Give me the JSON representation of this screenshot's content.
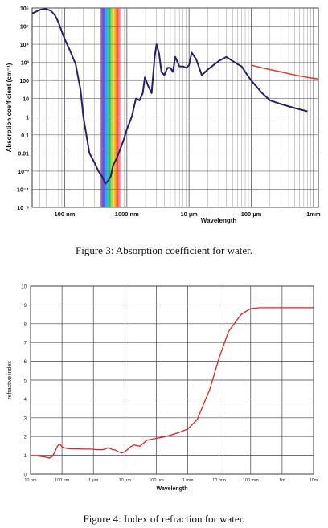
{
  "chart_data": [
    {
      "type": "line",
      "xscale": "log",
      "yscale": "log",
      "xlim_m": [
        3e-08,
        0.0012
      ],
      "ylim": [
        1e-05,
        1000000.0
      ],
      "ylabel": "Absorption coefficient (cm⁻¹)",
      "xlabel": "Wavelength",
      "grid": true,
      "x_ticks": [
        {
          "value": 1e-07,
          "label": "100 nm"
        },
        {
          "value": 1e-06,
          "label": "1000 nm"
        },
        {
          "value": 1e-05,
          "label": "10 µm"
        },
        {
          "value": 0.0001,
          "label": "100 µm"
        },
        {
          "value": 0.001,
          "label": "1mm"
        }
      ],
      "y_ticks": [
        {
          "value": 1000000.0,
          "label": "10⁶"
        },
        {
          "value": 100000.0,
          "label": "10⁵"
        },
        {
          "value": 10000.0,
          "label": "10⁴"
        },
        {
          "value": 1000.0,
          "label": "10³"
        },
        {
          "value": 100,
          "label": "100"
        },
        {
          "value": 10,
          "label": "10"
        },
        {
          "value": 1,
          "label": "1"
        },
        {
          "value": 0.1,
          "label": "0.1"
        },
        {
          "value": 0.01,
          "label": "0.01"
        },
        {
          "value": 0.001,
          "label": "10⁻³"
        },
        {
          "value": 0.0001,
          "label": "10⁻⁴"
        },
        {
          "value": 1e-05,
          "label": "10⁻⁵"
        }
      ],
      "visible_band_m": [
        3.8e-07,
        7.8e-07
      ],
      "series": [
        {
          "color": "#2a1f66",
          "x": [
            3e-08,
            4e-08,
            5e-08,
            6e-08,
            7e-08,
            8e-08,
            9e-08,
            1e-07,
            1.2e-07,
            1.5e-07,
            1.8e-07,
            2e-07,
            2.5e-07,
            3e-07,
            3.5e-07,
            4e-07,
            4.5e-07,
            5e-07,
            5.5e-07,
            6e-07,
            7e-07,
            8e-07,
            9e-07,
            1e-06,
            1.2e-06,
            1.4e-06,
            1.6e-06,
            1.8e-06,
            1.95e-06,
            2.2e-06,
            2.5e-06,
            2.8e-06,
            3e-06,
            3.3e-06,
            3.6e-06,
            4e-06,
            4.5e-06,
            5e-06,
            5.5e-06,
            6e-06,
            7e-06,
            8e-06,
            9e-06,
            1e-05,
            1.1e-05,
            1.3e-05,
            1.6e-05,
            2e-05,
            3e-05,
            4e-05,
            5e-05,
            6e-05,
            7e-05,
            8e-05,
            0.0001,
            0.00015,
            0.0002,
            0.0003,
            0.0005,
            0.0008
          ],
          "y": [
            500000,
            800000,
            900000,
            700000,
            400000,
            150000,
            50000,
            20000,
            5000,
            800,
            30,
            1,
            0.01,
            0.003,
            0.001,
            0.0005,
            0.0002,
            0.0003,
            0.0005,
            0.002,
            0.006,
            0.02,
            0.06,
            0.2,
            1,
            10,
            8,
            20,
            150,
            50,
            20,
            2000,
            10000,
            3000,
            300,
            200,
            500,
            500,
            300,
            2000,
            600,
            600,
            500,
            700,
            3500,
            1500,
            200,
            400,
            1200,
            2000,
            1200,
            800,
            600,
            300,
            100,
            20,
            8,
            5,
            3,
            2
          ]
        },
        {
          "color": "#e83a2e",
          "x": [
            0.0001,
            0.00015,
            0.0002,
            0.0003,
            0.0005,
            0.0008,
            0.0012
          ],
          "y": [
            700,
            500,
            400,
            300,
            200,
            150,
            120
          ]
        }
      ]
    },
    {
      "type": "line",
      "xscale": "log",
      "xlim_m": [
        1e-08,
        0.01
      ],
      "ylim": [
        0,
        10
      ],
      "ylabel": "refractive index",
      "xlabel": "Wavelength",
      "grid": true,
      "x_ticks": [
        {
          "value": 1e-08,
          "label": "10 nm"
        },
        {
          "value": 1e-07,
          "label": "100 nm"
        },
        {
          "value": 1e-06,
          "label": "1 µm"
        },
        {
          "value": 1e-05,
          "label": "10 µm"
        },
        {
          "value": 0.0001,
          "label": "100 µm"
        },
        {
          "value": 0.001,
          "label": "1 mm"
        },
        {
          "value": 0.01,
          "label": "10 mm"
        },
        {
          "value": 0.1,
          "label": "100 mm"
        },
        {
          "value": 1,
          "label": "1m"
        },
        {
          "value": 10,
          "label": "10m"
        }
      ],
      "xlim_display_m": [
        1e-08,
        10
      ],
      "y_ticks": [
        0,
        1,
        2,
        3,
        4,
        5,
        6,
        7,
        8,
        9,
        10
      ],
      "series": [
        {
          "color": "#e02020",
          "x": [
            1e-08,
            2e-08,
            3e-08,
            4e-08,
            5e-08,
            6e-08,
            7e-08,
            8e-08,
            9e-08,
            1e-07,
            1.2e-07,
            1.5e-07,
            2e-07,
            3e-07,
            5e-07,
            8e-07,
            1e-06,
            1.3e-06,
            1.5e-06,
            2e-06,
            3e-06,
            4e-06,
            5e-06,
            6e-06,
            8e-06,
            1e-05,
            1.2e-05,
            1.5e-05,
            2e-05,
            3e-05,
            5e-05,
            0.0001,
            0.0002,
            0.0005,
            0.001,
            0.002,
            0.005,
            0.01,
            0.02,
            0.05,
            0.1,
            0.2,
            0.5,
            1,
            3,
            10
          ],
          "y": [
            1.0,
            0.95,
            0.9,
            0.85,
            0.95,
            1.2,
            1.45,
            1.6,
            1.55,
            1.45,
            1.4,
            1.36,
            1.34,
            1.34,
            1.33,
            1.33,
            1.32,
            1.3,
            1.3,
            1.3,
            1.4,
            1.3,
            1.28,
            1.2,
            1.12,
            1.2,
            1.3,
            1.45,
            1.55,
            1.48,
            1.8,
            1.9,
            2.0,
            2.2,
            2.4,
            2.9,
            4.5,
            6.2,
            7.6,
            8.5,
            8.8,
            8.85,
            8.85,
            8.85,
            8.85,
            8.85
          ]
        }
      ]
    }
  ],
  "captions": {
    "fig3": "Figure 3: Absorption coefficient for water.",
    "fig4": "Figure 4: Index of refraction for water."
  }
}
